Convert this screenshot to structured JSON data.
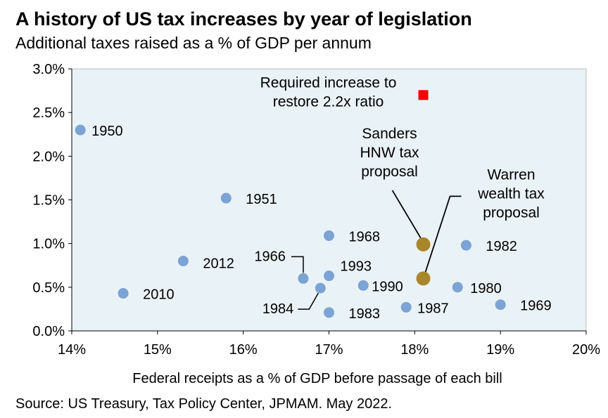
{
  "title": "A history of US tax increases by year of legislation",
  "subtitle": "Additional taxes raised as a % of GDP per annum",
  "source": "Source: US Treasury, Tax Policy Center, JPMAM. May 2022.",
  "chart_data": {
    "type": "scatter",
    "xlabel": "Federal receipts as a % of GDP before passage of each bill",
    "ylabel": "",
    "xlim": [
      14,
      20
    ],
    "ylim": [
      0,
      3
    ],
    "x_ticks": [
      14,
      15,
      16,
      17,
      18,
      19,
      20
    ],
    "y_ticks": [
      0,
      0.5,
      1,
      1.5,
      2,
      2.5,
      3
    ],
    "x_tick_labels": [
      "14%",
      "15%",
      "16%",
      "17%",
      "18%",
      "19%",
      "20%"
    ],
    "y_tick_labels": [
      "0.0%",
      "0.5%",
      "1.0%",
      "1.5%",
      "2.0%",
      "2.5%",
      "3.0%"
    ],
    "grid": false,
    "background_color": "#e9f2f6",
    "series": [
      {
        "color": "#7ba3d4",
        "points": [
          {
            "x": 14.1,
            "y": 2.3,
            "label": "1950"
          },
          {
            "x": 15.8,
            "y": 1.52,
            "label": "1951"
          },
          {
            "x": 17.0,
            "y": 1.09,
            "label": "1968"
          },
          {
            "x": 18.6,
            "y": 0.98,
            "label": "1982"
          },
          {
            "x": 15.3,
            "y": 0.8,
            "label": "2012"
          },
          {
            "x": 16.7,
            "y": 0.6,
            "label": "1966"
          },
          {
            "x": 17.0,
            "y": 0.63,
            "label": "1993"
          },
          {
            "x": 17.4,
            "y": 0.52,
            "label": "1990"
          },
          {
            "x": 18.5,
            "y": 0.5,
            "label": "1980"
          },
          {
            "x": 16.9,
            "y": 0.49,
            "label": "1984"
          },
          {
            "x": 14.6,
            "y": 0.43,
            "label": "2010"
          },
          {
            "x": 17.9,
            "y": 0.27,
            "label": "1987"
          },
          {
            "x": 19.0,
            "y": 0.3,
            "label": "1969"
          },
          {
            "x": 17.0,
            "y": 0.21,
            "label": "1983"
          }
        ]
      },
      {
        "color": "#a8862a",
        "points": [
          {
            "x": 18.1,
            "y": 0.99,
            "label": "Sanders HNW tax proposal"
          },
          {
            "x": 18.1,
            "y": 0.6,
            "label": "Warren wealth tax proposal"
          }
        ]
      },
      {
        "color": "#ff0000",
        "marker": "square",
        "points": [
          {
            "x": 18.1,
            "y": 2.7,
            "label": "Required increase to restore 2.2x ratio"
          }
        ]
      }
    ],
    "annotations": [
      {
        "lines": [
          "Required increase to",
          "restore 2.2x ratio"
        ]
      },
      {
        "lines": [
          "Sanders",
          "HNW tax",
          "proposal"
        ]
      },
      {
        "lines": [
          "Warren",
          "wealth tax",
          "proposal"
        ]
      }
    ]
  }
}
